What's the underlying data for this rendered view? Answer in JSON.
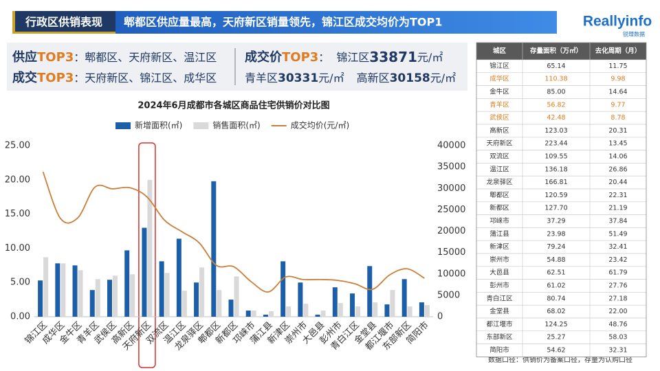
{
  "header": {
    "section": "行政区供销表现",
    "headline": "郫都区供应量最高，天府新区销量领先，锦江区成交均价为TOP1"
  },
  "logo": {
    "brand": "Reallyinfo",
    "sub": "锐理数据"
  },
  "summary": {
    "supply": {
      "label": "供应",
      "highlight": "TOP3",
      "rest": "：郫都区、天府新区、温江区"
    },
    "sales": {
      "label": "成交",
      "highlight": "TOP3",
      "rest": "：天府新区、锦江区、成华区"
    },
    "price": {
      "label": "成交价",
      "highlight": "TOP3",
      "colon": "：",
      "items": [
        {
          "district": "锦江区",
          "price": 33871,
          "unit": "元/㎡"
        },
        {
          "district": "青羊区",
          "price": 30331,
          "unit": "元/㎡"
        },
        {
          "district": "高新区",
          "price": 30158,
          "unit": "元/㎡"
        }
      ]
    }
  },
  "chart_data": {
    "type": "bar",
    "title": "2024年6月成都市各城区商品住宅供销价对比图",
    "categories": [
      "锦江区",
      "成华区",
      "金牛区",
      "青羊区",
      "武侯区",
      "高新区",
      "天府新区",
      "双流区",
      "温江区",
      "龙泉驿区",
      "郫都区",
      "新都区",
      "邛崃市",
      "蒲江县",
      "新津区",
      "崇州市",
      "大邑县",
      "彭州市",
      "青白江区",
      "金堂县",
      "都江堰市",
      "东部新区",
      "简阳市"
    ],
    "series": [
      {
        "name": "新增面积(㎡)",
        "type": "bar",
        "color": "#1c5fa8",
        "values": [
          5.3,
          7.8,
          7.5,
          3.9,
          5.4,
          9.7,
          13.0,
          8.1,
          11.4,
          5.0,
          19.8,
          2.5,
          0.9,
          0.3,
          8.1,
          5.0,
          0.3,
          4.3,
          3.4,
          7.4,
          1.8,
          5.5,
          2.1
        ]
      },
      {
        "name": "销售面积(㎡)",
        "type": "bar",
        "color": "#d9d9d9",
        "values": [
          8.7,
          7.8,
          6.8,
          5.5,
          6.0,
          6.2,
          20.0,
          6.4,
          3.8,
          7.2,
          3.9,
          5.9,
          0.9,
          0.8,
          1.5,
          1.9,
          0.9,
          2.0,
          1.5,
          2.1,
          3.9,
          1.5,
          1.7
        ]
      },
      {
        "name": "成交均价(元/㎡)",
        "type": "line",
        "axis": "y2",
        "color": "#c97f3a",
        "values": [
          33871,
          23000,
          23100,
          30331,
          29900,
          30158,
          28000,
          22600,
          19900,
          17300,
          12000,
          11700,
          8200,
          5800,
          9300,
          8700,
          8700,
          8500,
          7700,
          6400,
          9800,
          11200,
          9000
        ]
      }
    ],
    "ylim": [
      0,
      25
    ],
    "yticks": [
      {
        "value": 0,
        "label": "0.00"
      },
      {
        "value": 5,
        "label": "5.00"
      },
      {
        "value": 10,
        "label": "10.00"
      },
      {
        "value": 15,
        "label": "15.00"
      },
      {
        "value": 20,
        "label": "20.00"
      },
      {
        "value": 25,
        "label": "25.00"
      }
    ],
    "y2lim": [
      0,
      40000
    ],
    "y2ticks": [
      0,
      5000,
      10000,
      15000,
      20000,
      25000,
      30000,
      35000,
      40000
    ],
    "grid": false,
    "legend": "top"
  },
  "table": {
    "columns": [
      "城区",
      "存量面积（万㎡）",
      "去化周期（月）"
    ],
    "rows": [
      [
        "锦江区",
        "65.14",
        "11.75"
      ],
      [
        "成华区",
        "110.38",
        "9.98"
      ],
      [
        "金牛区",
        "85.00",
        "14.64"
      ],
      [
        "青羊区",
        "56.82",
        "9.77"
      ],
      [
        "武侯区",
        "42.48",
        "8.78"
      ],
      [
        "高新区",
        "123.03",
        "20.31"
      ],
      [
        "天府新区",
        "223.44",
        "13.45"
      ],
      [
        "双流区",
        "109.55",
        "14.06"
      ],
      [
        "温江区",
        "136.18",
        "26.86"
      ],
      [
        "龙泉驿区",
        "166.81",
        "20.44"
      ],
      [
        "郫都区",
        "120.59",
        "22.31"
      ],
      [
        "新都区",
        "127.70",
        "21.19"
      ],
      [
        "邛崃市",
        "37.29",
        "37.84"
      ],
      [
        "蒲江县",
        "23.98",
        "51.49"
      ],
      [
        "新津区",
        "79.24",
        "32.41"
      ],
      [
        "崇州市",
        "54.88",
        "23.42"
      ],
      [
        "大邑县",
        "62.51",
        "61.79"
      ],
      [
        "彭州市",
        "61.02",
        "27.76"
      ],
      [
        "青白江区",
        "80.74",
        "27.18"
      ],
      [
        "金堂县",
        "68.02",
        "22.00"
      ],
      [
        "都江堰市",
        "124.25",
        "48.76"
      ],
      [
        "东部新区",
        "25.27",
        "58.03"
      ],
      [
        "简阳市",
        "54.62",
        "32.31"
      ]
    ]
  },
  "footnote": "数据口径：供销价为备案口径，存量为认购口径"
}
